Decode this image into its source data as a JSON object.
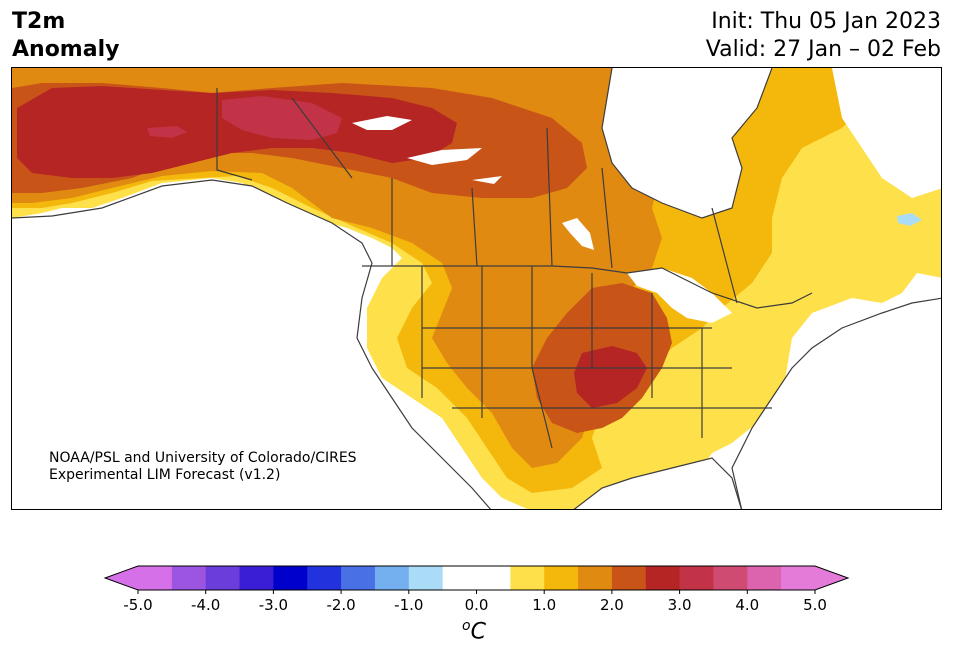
{
  "header": {
    "title_line1": "T2m",
    "title_line2": "Anomaly",
    "init": "Init: Thu 05 Jan 2023",
    "valid": "Valid: 27 Jan – 02 Feb"
  },
  "credit": {
    "line1": "NOAA/PSL and University of Colorado/CIRES",
    "line2": "Experimental LIM Forecast (v1.2)"
  },
  "colorbar": {
    "unit_base": "C",
    "unit_sup": "o",
    "tick_labels": [
      "-5.0",
      "-4.0",
      "-3.0",
      "-2.0",
      "-1.0",
      "0.0",
      "1.0",
      "2.0",
      "3.0",
      "4.0",
      "5.0"
    ],
    "colors": [
      "#d670e8",
      "#9b55e0",
      "#6b3ddb",
      "#3a1ed6",
      "#0000cc",
      "#2233dd",
      "#4a70e6",
      "#74b0f0",
      "#aadcf8",
      "#ffffff",
      "#ffffff",
      "#fee04b",
      "#f4b80c",
      "#e08a12",
      "#c85418",
      "#b52524",
      "#c23347",
      "#cf4b72",
      "#dc63ae",
      "#e57bd8"
    ],
    "extend_low_color": "#d670e8",
    "extend_high_color": "#e57bd8"
  },
  "map_colors": {
    "light_blue": "#aadcf8",
    "yellow": "#fee04b",
    "gold": "#f4b80c",
    "orange": "#e08a12",
    "dark_orange": "#c85418",
    "red": "#b52524",
    "crimson": "#c23347",
    "land_lines": "#3c3c3c"
  }
}
